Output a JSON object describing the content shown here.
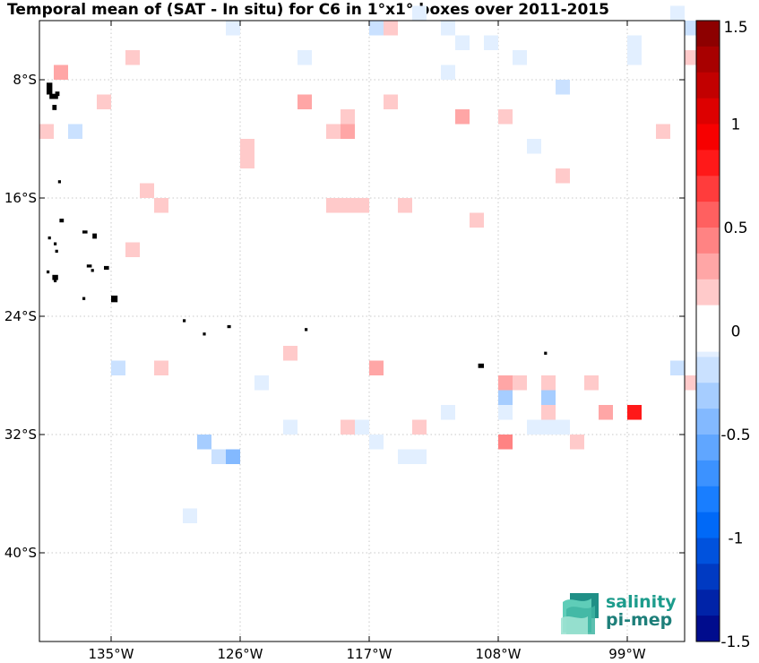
{
  "chart_data": {
    "type": "heatmap",
    "title": "Temporal mean of (SAT - In situ) for C6 in 1°x1° boxes over 2011-2015",
    "xlabel": "",
    "ylabel": "",
    "x_range": [
      -140,
      -95
    ],
    "y_range": [
      -46,
      -4
    ],
    "x_ticks": [
      {
        "value": -135,
        "label": "135°W"
      },
      {
        "value": -126,
        "label": "126°W"
      },
      {
        "value": -117,
        "label": "117°W"
      },
      {
        "value": -108,
        "label": "108°W"
      },
      {
        "value": -99,
        "label": "99°W"
      }
    ],
    "y_ticks": [
      {
        "value": -8,
        "label": "8°S"
      },
      {
        "value": -16,
        "label": "16°S"
      },
      {
        "value": -24,
        "label": "24°S"
      },
      {
        "value": -32,
        "label": "32°S"
      },
      {
        "value": -40,
        "label": "40°S"
      }
    ],
    "grid": true,
    "colorbar": {
      "min": -1.5,
      "max": 1.5,
      "step": 0.125,
      "ticks": [
        {
          "value": 1.5,
          "label": "1.5"
        },
        {
          "value": 1,
          "label": "1"
        },
        {
          "value": 0.5,
          "label": "0.5"
        },
        {
          "value": 0,
          "label": "0"
        },
        {
          "value": -0.5,
          "label": "-0.5"
        },
        {
          "value": -1,
          "label": "-1"
        },
        {
          "value": -1.5,
          "label": "-1.5"
        }
      ]
    },
    "cells": [
      {
        "lon": -127,
        "lat": -5,
        "v": -0.1
      },
      {
        "lon": -114,
        "lat": -4,
        "v": -0.1
      },
      {
        "lon": -117,
        "lat": -5,
        "v": -0.15
      },
      {
        "lon": -116,
        "lat": -5,
        "v": 0.15
      },
      {
        "lon": -112,
        "lat": -5,
        "v": -0.1
      },
      {
        "lon": -111,
        "lat": -6,
        "v": -0.1
      },
      {
        "lon": -109,
        "lat": -6,
        "v": -0.1
      },
      {
        "lon": -96,
        "lat": -4,
        "v": -0.1
      },
      {
        "lon": -95,
        "lat": -5,
        "v": -0.15
      },
      {
        "lon": -99,
        "lat": -6,
        "v": -0.1
      },
      {
        "lon": -99,
        "lat": -7,
        "v": -0.1
      },
      {
        "lon": -95,
        "lat": -7,
        "v": 0.15
      },
      {
        "lon": -134,
        "lat": -7,
        "v": 0.15
      },
      {
        "lon": -122,
        "lat": -7,
        "v": -0.1
      },
      {
        "lon": -107,
        "lat": -7,
        "v": -0.1
      },
      {
        "lon": -112,
        "lat": -8,
        "v": -0.1
      },
      {
        "lon": -139,
        "lat": -8,
        "v": 0.35
      },
      {
        "lon": -104,
        "lat": -9,
        "v": -0.15
      },
      {
        "lon": -136,
        "lat": -10,
        "v": 0.15
      },
      {
        "lon": -122,
        "lat": -10,
        "v": 0.3
      },
      {
        "lon": -116,
        "lat": -10,
        "v": 0.15
      },
      {
        "lon": -119,
        "lat": -11,
        "v": 0.15
      },
      {
        "lon": -111,
        "lat": -11,
        "v": 0.35
      },
      {
        "lon": -108,
        "lat": -11,
        "v": 0.15
      },
      {
        "lon": -140,
        "lat": -12,
        "v": 0.2
      },
      {
        "lon": -138,
        "lat": -12,
        "v": -0.15
      },
      {
        "lon": -120,
        "lat": -12,
        "v": 0.15
      },
      {
        "lon": -119,
        "lat": -12,
        "v": 0.3
      },
      {
        "lon": -97,
        "lat": -12,
        "v": 0.15
      },
      {
        "lon": -106,
        "lat": -13,
        "v": -0.1
      },
      {
        "lon": -126,
        "lat": -13,
        "v": 0.15
      },
      {
        "lon": -126,
        "lat": -14,
        "v": 0.15
      },
      {
        "lon": -104,
        "lat": -15,
        "v": 0.15
      },
      {
        "lon": -133,
        "lat": -16,
        "v": 0.2
      },
      {
        "lon": -132,
        "lat": -17,
        "v": 0.2
      },
      {
        "lon": -120,
        "lat": -17,
        "v": 0.15
      },
      {
        "lon": -119,
        "lat": -17,
        "v": 0.15
      },
      {
        "lon": -118,
        "lat": -17,
        "v": 0.15
      },
      {
        "lon": -115,
        "lat": -17,
        "v": 0.2
      },
      {
        "lon": -110,
        "lat": -18,
        "v": 0.2
      },
      {
        "lon": -134,
        "lat": -20,
        "v": 0.2
      },
      {
        "lon": -123,
        "lat": -27,
        "v": 0.2
      },
      {
        "lon": -135,
        "lat": -28,
        "v": -0.15
      },
      {
        "lon": -132,
        "lat": -28,
        "v": 0.2
      },
      {
        "lon": -117,
        "lat": -28,
        "v": 0.35
      },
      {
        "lon": -96,
        "lat": -28,
        "v": -0.15
      },
      {
        "lon": -125,
        "lat": -29,
        "v": -0.1
      },
      {
        "lon": -108,
        "lat": -29,
        "v": 0.35
      },
      {
        "lon": -107,
        "lat": -29,
        "v": 0.15
      },
      {
        "lon": -105,
        "lat": -29,
        "v": 0.15
      },
      {
        "lon": -102,
        "lat": -29,
        "v": 0.15
      },
      {
        "lon": -95,
        "lat": -29,
        "v": 0.15
      },
      {
        "lon": -108,
        "lat": -30,
        "v": -0.25
      },
      {
        "lon": -105,
        "lat": -30,
        "v": -0.25
      },
      {
        "lon": -112,
        "lat": -31,
        "v": -0.1
      },
      {
        "lon": -108,
        "lat": -31,
        "v": -0.1
      },
      {
        "lon": -105,
        "lat": -31,
        "v": 0.15
      },
      {
        "lon": -101,
        "lat": -31,
        "v": 0.35
      },
      {
        "lon": -99,
        "lat": -31,
        "v": 0.75
      },
      {
        "lon": -123,
        "lat": -32,
        "v": -0.1
      },
      {
        "lon": -119,
        "lat": -32,
        "v": 0.15
      },
      {
        "lon": -118,
        "lat": -32,
        "v": -0.1
      },
      {
        "lon": -114,
        "lat": -32,
        "v": 0.15
      },
      {
        "lon": -106,
        "lat": -32,
        "v": -0.1
      },
      {
        "lon": -105,
        "lat": -32,
        "v": -0.1
      },
      {
        "lon": -104,
        "lat": -32,
        "v": -0.1
      },
      {
        "lon": -129,
        "lat": -33,
        "v": -0.3
      },
      {
        "lon": -117,
        "lat": -33,
        "v": -0.1
      },
      {
        "lon": -108,
        "lat": -33,
        "v": 0.45
      },
      {
        "lon": -103,
        "lat": -33,
        "v": 0.15
      },
      {
        "lon": -128,
        "lat": -34,
        "v": -0.15
      },
      {
        "lon": -127,
        "lat": -34,
        "v": -0.4
      },
      {
        "lon": -115,
        "lat": -34,
        "v": -0.1
      },
      {
        "lon": -114,
        "lat": -34,
        "v": -0.1
      },
      {
        "lon": -130,
        "lat": -38,
        "v": -0.1
      }
    ],
    "land_marks": [
      {
        "lon": -139.5,
        "lat": -8.2,
        "w": 0.4,
        "h": 0.8
      },
      {
        "lon": -139.3,
        "lat": -8.95,
        "w": 0.6,
        "h": 0.35
      },
      {
        "lon": -138.9,
        "lat": -8.8,
        "w": 0.3,
        "h": 0.3
      },
      {
        "lon": -139.1,
        "lat": -9.7,
        "w": 0.3,
        "h": 0.35
      },
      {
        "lon": -138.7,
        "lat": -14.8,
        "w": 0.2,
        "h": 0.2
      },
      {
        "lon": -138.6,
        "lat": -17.4,
        "w": 0.3,
        "h": 0.25
      },
      {
        "lon": -137.0,
        "lat": -18.2,
        "w": 0.35,
        "h": 0.2
      },
      {
        "lon": -136.3,
        "lat": -18.4,
        "w": 0.3,
        "h": 0.35
      },
      {
        "lon": -139.4,
        "lat": -18.6,
        "w": 0.2,
        "h": 0.2
      },
      {
        "lon": -139.0,
        "lat": -19.0,
        "w": 0.2,
        "h": 0.2
      },
      {
        "lon": -138.9,
        "lat": -19.5,
        "w": 0.2,
        "h": 0.2
      },
      {
        "lon": -139.5,
        "lat": -20.9,
        "w": 0.2,
        "h": 0.2
      },
      {
        "lon": -136.7,
        "lat": -20.5,
        "w": 0.35,
        "h": 0.2
      },
      {
        "lon": -136.4,
        "lat": -20.8,
        "w": 0.2,
        "h": 0.2
      },
      {
        "lon": -135.5,
        "lat": -20.6,
        "w": 0.35,
        "h": 0.25
      },
      {
        "lon": -139.1,
        "lat": -21.2,
        "w": 0.4,
        "h": 0.35
      },
      {
        "lon": -139.0,
        "lat": -21.5,
        "w": 0.2,
        "h": 0.2
      },
      {
        "lon": -137.0,
        "lat": -22.7,
        "w": 0.2,
        "h": 0.2
      },
      {
        "lon": -135.0,
        "lat": -22.6,
        "w": 0.45,
        "h": 0.45
      },
      {
        "lon": -130.0,
        "lat": -24.2,
        "w": 0.2,
        "h": 0.2
      },
      {
        "lon": -128.6,
        "lat": -25.1,
        "w": 0.2,
        "h": 0.2
      },
      {
        "lon": -126.9,
        "lat": -24.6,
        "w": 0.25,
        "h": 0.2
      },
      {
        "lon": -121.5,
        "lat": -24.8,
        "w": 0.2,
        "h": 0.2
      },
      {
        "lon": -109.4,
        "lat": -27.2,
        "w": 0.4,
        "h": 0.3
      },
      {
        "lon": -104.8,
        "lat": -26.4,
        "w": 0.2,
        "h": 0.2
      }
    ]
  },
  "logo": {
    "line1": "salinity",
    "line2": "pi-mep"
  }
}
